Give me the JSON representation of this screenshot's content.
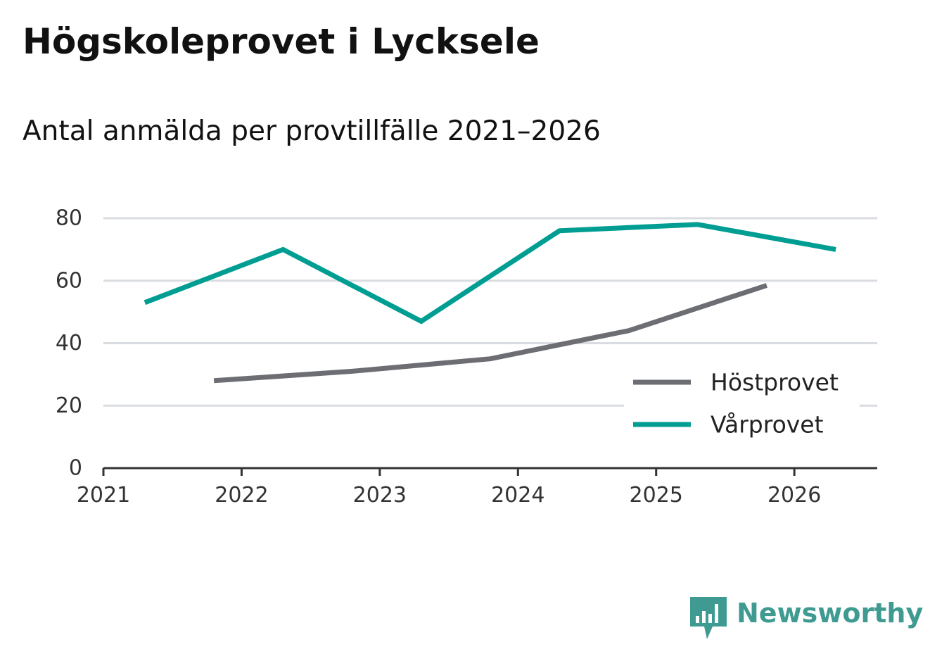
{
  "header": {
    "title": "Högskoleprovet i Lycksele",
    "subtitle": "Antal anmälda per provtillfälle 2021–2026"
  },
  "brand": {
    "name": "Newsworthy",
    "color": "#3f9b92"
  },
  "colors": {
    "grid": "#d9dce0",
    "axis": "#333333",
    "background": "#ffffff"
  },
  "chart_data": {
    "type": "line",
    "title": "Högskoleprovet i Lycksele",
    "subtitle": "Antal anmälda per provtillfälle 2021–2026",
    "xlabel": "",
    "ylabel": "",
    "xlim": [
      2021,
      2026.6
    ],
    "ylim": [
      0,
      80
    ],
    "x_ticks": [
      2021,
      2022,
      2023,
      2024,
      2025,
      2026
    ],
    "x_tick_labels": [
      "2021",
      "2022",
      "2023",
      "2024",
      "2025",
      "2026"
    ],
    "y_ticks": [
      0,
      20,
      40,
      60,
      80
    ],
    "y_tick_labels": [
      "0",
      "20",
      "40",
      "60",
      "80"
    ],
    "grid": true,
    "legend_position": "bottom-right",
    "series": [
      {
        "name": "Höstprovet",
        "color": "#6d6e74",
        "x": [
          2021.8,
          2022.8,
          2023.8,
          2024.8,
          2025.8
        ],
        "values": [
          28,
          31,
          35,
          44,
          58.5
        ]
      },
      {
        "name": "Vårprovet",
        "color": "#009e92",
        "x": [
          2021.3,
          2022.3,
          2023.3,
          2024.3,
          2025.3,
          2026.3
        ],
        "values": [
          53,
          70,
          47,
          76,
          78,
          70
        ]
      }
    ]
  }
}
